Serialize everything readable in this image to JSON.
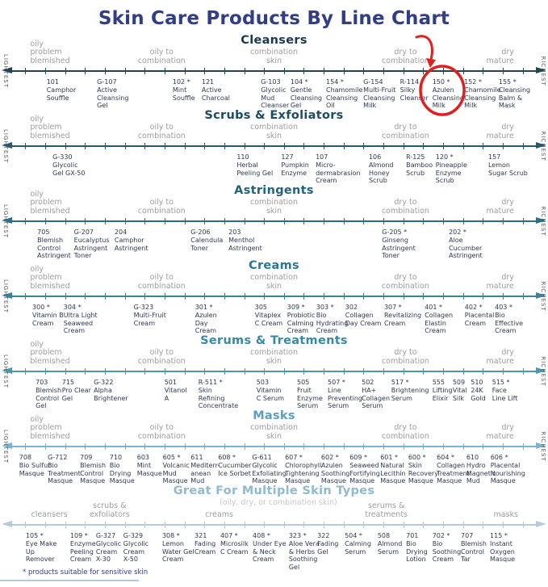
{
  "title": "Skin Care Products By Line Chart",
  "footnote": "* products suitable for sensitive skin",
  "annotation": {
    "color": "#e02020",
    "highlighted_product": "150 * Azulen Cleansing Milk"
  },
  "chart_data": {
    "type": "line",
    "title": "Skin Care Products By Line Chart",
    "scale": {
      "left_label": "LIGHTEST",
      "right_label": "RICHEST"
    },
    "zone_axis_note": "x values are percent position along each product line, LIGHTEST (0) to RICHEST (100)",
    "sections": [
      {
        "title": "Cleansers",
        "title_color": "#183a4f",
        "axis_color": "#24444f",
        "has_scale": true,
        "zones": [
          {
            "label": "oily\nproblem\nblemished",
            "x": 5.5,
            "align": "left"
          },
          {
            "label": "oily to\ncombination",
            "x": 29.5,
            "align": "center"
          },
          {
            "label": "combination\nskin",
            "x": 50,
            "align": "center"
          },
          {
            "label": "dry to\ncombination",
            "x": 74,
            "align": "center"
          },
          {
            "label": "dry\nmature",
            "x": 93.8,
            "align": "right"
          }
        ],
        "products": [
          {
            "label": "101\nCamphor\nSouffle",
            "x": 8.5
          },
          {
            "label": "G-107\nActive\nCleansing\nGel",
            "x": 17.7
          },
          {
            "label": "102 *\nMint\nSouffle",
            "x": 31.5
          },
          {
            "label": "121\nActive\nCharcoal",
            "x": 36.8
          },
          {
            "label": "G-103\nGlycolic\nMud\nCleanser",
            "x": 47.6
          },
          {
            "label": "104 *\nGentle\nCleansing\nGel",
            "x": 53.0
          },
          {
            "label": "154 *\nChamomile\nCleansing\nOil",
            "x": 59.5
          },
          {
            "label": "G-154\nMulti-Fruit\nCleansing\nMilk",
            "x": 66.3
          },
          {
            "label": "R-114 *\nSilky\nCleanser",
            "x": 73.0
          },
          {
            "label": "150 *\nAzulen\nCleansing\nMilk",
            "x": 78.9
          },
          {
            "label": "152 *\nChamomile\nCleansing\nMilk",
            "x": 84.7
          },
          {
            "label": "155 *\nCleansing\nBalm &\nMask",
            "x": 91.0
          }
        ]
      },
      {
        "title": "Scrubs & Exfoliators",
        "title_color": "#1c4c60",
        "axis_color": "#27596a",
        "has_scale": true,
        "zones": [
          {
            "label": "oily\nproblem\nblemished",
            "x": 5.5,
            "align": "left"
          },
          {
            "label": "oily to\ncombination",
            "x": 29.5,
            "align": "center"
          },
          {
            "label": "combination\nskin",
            "x": 50,
            "align": "center"
          },
          {
            "label": "dry to\ncombination",
            "x": 74,
            "align": "center"
          },
          {
            "label": "dry\nmature",
            "x": 93.8,
            "align": "right"
          }
        ],
        "products": [
          {
            "label": "G-330\nGlycolic\nGel GX-50",
            "x": 9.6
          },
          {
            "label": "110\nHerbal\nPeeling Gel",
            "x": 43.2
          },
          {
            "label": "127\nPumpkin\nEnzyme",
            "x": 51.3
          },
          {
            "label": "107\nMicro-\ndermabrasion\nCream",
            "x": 57.6
          },
          {
            "label": "106\nAlmond\nHoney\nScrub",
            "x": 67.3
          },
          {
            "label": "R-125\nBamboo\nScrub",
            "x": 74.1
          },
          {
            "label": "120 *\nPineapple\nEnzyme\nScrub",
            "x": 79.5
          },
          {
            "label": "157\nLemon\nSugar Scrub",
            "x": 89.1
          }
        ]
      },
      {
        "title": "Astringents",
        "title_color": "#226379",
        "axis_color": "#2e6e83",
        "has_scale": true,
        "zones": [
          {
            "label": "oily\nproblem\nblemished",
            "x": 5.5,
            "align": "left"
          },
          {
            "label": "oily to\ncombination",
            "x": 29.5,
            "align": "center"
          },
          {
            "label": "combination\nskin",
            "x": 50,
            "align": "center"
          },
          {
            "label": "dry to\ncombination",
            "x": 74,
            "align": "center"
          },
          {
            "label": "dry\nmature",
            "x": 93.8,
            "align": "right"
          }
        ],
        "products": [
          {
            "label": "705\nBlemish\nControl\nAstringent",
            "x": 6.8
          },
          {
            "label": "G-207\nEucalyptus\nAstringent\nToner",
            "x": 13.5
          },
          {
            "label": "204\nCamphor\nAstringent",
            "x": 20.9
          },
          {
            "label": "G-206\nCalendula\nToner",
            "x": 34.8
          },
          {
            "label": "203\nMenthol\nAstringent",
            "x": 41.7
          },
          {
            "label": "G-205 *\nGinseng\nAstringent\nToner",
            "x": 69.7
          },
          {
            "label": "202 *\nAloe\nCucumber\nAstringent",
            "x": 81.9
          }
        ]
      },
      {
        "title": "Creams",
        "title_color": "#2c7690",
        "axis_color": "#3a8399",
        "has_scale": true,
        "zones": [
          {
            "label": "oily\nproblem\nblemished",
            "x": 5.5,
            "align": "left"
          },
          {
            "label": "oily to\ncombination",
            "x": 29.5,
            "align": "center"
          },
          {
            "label": "combination\nskin",
            "x": 50,
            "align": "center"
          },
          {
            "label": "dry to\ncombination",
            "x": 74,
            "align": "center"
          },
          {
            "label": "dry\nmature",
            "x": 93.8,
            "align": "right"
          }
        ],
        "products": [
          {
            "label": "300 *\nVitamin B\nCream",
            "x": 5.9
          },
          {
            "label": "304 *\nUltra Light\nSeaweed\nCream",
            "x": 11.6
          },
          {
            "label": "G-323\nMulti-Fruit\nCream",
            "x": 24.4
          },
          {
            "label": "301 *\nAzulen\nDay\nCream",
            "x": 35.6
          },
          {
            "label": "305\nVitaplex\nC Cream",
            "x": 46.5
          },
          {
            "label": "309 *\nProbiotic\nCalming\nCream",
            "x": 52.4
          },
          {
            "label": "303 *\nBio\nHydrating\nCream",
            "x": 57.7
          },
          {
            "label": "302\nCollagen\nDay Cream",
            "x": 63.0
          },
          {
            "label": "307 *\nRevitalizing\nCream",
            "x": 70.1
          },
          {
            "label": "401 *\nCollagen\nElastin\nCream",
            "x": 77.5
          },
          {
            "label": "402 *\nPlacental\nCream",
            "x": 84.8
          },
          {
            "label": "403 *\nBio\nEffective\nCream",
            "x": 90.3
          }
        ]
      },
      {
        "title": "Serums & Treatments",
        "title_color": "#3b88a4",
        "axis_color": "#4e95ad",
        "has_scale": true,
        "zones": [
          {
            "label": "oily\nproblem\nblemished",
            "x": 5.5,
            "align": "left"
          },
          {
            "label": "oily to\ncombination",
            "x": 29.5,
            "align": "center"
          },
          {
            "label": "combination\nskin",
            "x": 50,
            "align": "center"
          },
          {
            "label": "dry to\ncombination",
            "x": 74,
            "align": "center"
          },
          {
            "label": "dry\nmature",
            "x": 93.8,
            "align": "right"
          }
        ],
        "products": [
          {
            "label": "703\nBlemish\nControl\nGel",
            "x": 6.5
          },
          {
            "label": "715\nPro Clear\nGel",
            "x": 11.3
          },
          {
            "label": "G-322\nAlpha\nBrightener",
            "x": 17.1
          },
          {
            "label": "501\nVitanol\nA",
            "x": 30.0
          },
          {
            "label": "R-511 *\nSkin\nRefining\nConcentrate",
            "x": 36.2
          },
          {
            "label": "503\nVitamin\nC Serum",
            "x": 46.8
          },
          {
            "label": "505\nFruit\nEnzyme\nSerum",
            "x": 54.2
          },
          {
            "label": "507 *\nLine\nPreventing\nSerum",
            "x": 59.8
          },
          {
            "label": "502\nHA+\nCollagen\nSerum",
            "x": 66.0
          },
          {
            "label": "517 *\nBrightening\nSerum",
            "x": 71.4
          },
          {
            "label": "555\nLifting\nElixir",
            "x": 78.9
          },
          {
            "label": "509\nVital\nSilk",
            "x": 82.6
          },
          {
            "label": "510\n24K\nGold",
            "x": 85.9
          },
          {
            "label": "515 *\nFace\nLine Lift",
            "x": 89.8
          }
        ]
      },
      {
        "title": "Masks",
        "title_color": "#5e9dbe",
        "axis_color": "#7fb2cc",
        "has_scale": true,
        "zones": [
          {
            "label": "oily\nproblem\nblemished",
            "x": 5.5,
            "align": "left"
          },
          {
            "label": "oily to\ncombination",
            "x": 29.5,
            "align": "center"
          },
          {
            "label": "combination\nskin",
            "x": 50,
            "align": "center"
          },
          {
            "label": "dry to\ncombination",
            "x": 74,
            "align": "center"
          },
          {
            "label": "dry\nmature",
            "x": 93.8,
            "align": "right"
          }
        ],
        "products": [
          {
            "label": "708\nBio Sulfur\nMasque",
            "x": 3.5
          },
          {
            "label": "G-712\nBio\nTreatment\nMasque",
            "x": 8.7
          },
          {
            "label": "709\nBlemish\nControl\nMasque",
            "x": 14.6
          },
          {
            "label": "710\nBio\nDrying\nMasque",
            "x": 20.0
          },
          {
            "label": "603\nMint\nMasque",
            "x": 25.0
          },
          {
            "label": "605 *\nVolcanic\nMud\nMasque",
            "x": 29.7
          },
          {
            "label": "611\nMediterr-\nanean\nMud",
            "x": 34.8
          },
          {
            "label": "608 *\nCucumber\nIce Sorbet",
            "x": 39.8
          },
          {
            "label": "G-611\nGlycolic\nExfoliating\nMasque",
            "x": 46.0
          },
          {
            "label": "607 *\nChlorophyll\nTightening\nMasque",
            "x": 52.0
          },
          {
            "label": "602 *\nAzulen\nSoothing\nMasque",
            "x": 58.6
          },
          {
            "label": "609 *\nSeaweed\nFortifying\nMasque",
            "x": 63.8
          },
          {
            "label": "601 *\nNatural\nLecithin\nMasque",
            "x": 69.4
          },
          {
            "label": "600 *\nSkin\nRecovery\nMasque",
            "x": 74.5
          },
          {
            "label": "604 *\nCollagen\nTreatment\nMasque",
            "x": 79.7
          },
          {
            "label": "610\nHydro\nMagnetic\nMud",
            "x": 85.1
          },
          {
            "label": "606 *\nPlacental\nNourishing\nMasque",
            "x": 89.5
          }
        ]
      },
      {
        "title": "Great For Multiple Skin Types",
        "title_color": "#90bad1",
        "axis_color": "#b6cbd7",
        "has_scale": false,
        "subtitle": "(oily, dry, or combination skin)",
        "subtitle_x": 50.8,
        "zones": [
          {
            "label": "cleansers",
            "x": 9.0,
            "align": "center"
          },
          {
            "label": "scrubs &\nexfoliators",
            "x": 20.0,
            "align": "center"
          },
          {
            "label": "creams",
            "x": 40.0,
            "align": "center"
          },
          {
            "label": "serums &\ntreatments",
            "x": 70.5,
            "align": "center"
          },
          {
            "label": "masks",
            "x": 92.3,
            "align": "center"
          }
        ],
        "products": [
          {
            "label": "105 *\nEye Make\nUp\nRemover",
            "x": 4.7
          },
          {
            "label": "109 *\nEnzyme\nPeeling\nCream",
            "x": 12.8
          },
          {
            "label": "G-327\nGlycolic\nCream\nX-30",
            "x": 17.5
          },
          {
            "label": "G-329\nGlycolic\nCream\nX-50",
            "x": 22.5
          },
          {
            "label": "308 *\nLemon\nWater Gel\nCream",
            "x": 29.6
          },
          {
            "label": "321\nFading\nCream",
            "x": 35.5
          },
          {
            "label": "407 *\nMicrosilk\nC Cream",
            "x": 40.2
          },
          {
            "label": "408 *\nUnder Eye\n& Neck\nCream",
            "x": 46.1
          },
          {
            "label": "323 *\nAloe Vera\n& Herbs\nSoothing\nGel",
            "x": 52.7
          },
          {
            "label": "322\nFading\nGel",
            "x": 57.9
          },
          {
            "label": "504 *\nCalming\nSerum",
            "x": 62.9
          },
          {
            "label": "508\nAlmond\nSerum",
            "x": 68.9
          },
          {
            "label": "701\nBio\nDrying\nLotion",
            "x": 74.1
          },
          {
            "label": "702 *\nBio\nSoothing\nCream",
            "x": 78.9
          },
          {
            "label": "707\nBlemish\nControl\nTar",
            "x": 84.1
          },
          {
            "label": "115 *\nInstant\nOxygen\nMasque",
            "x": 89.4
          }
        ]
      }
    ]
  }
}
